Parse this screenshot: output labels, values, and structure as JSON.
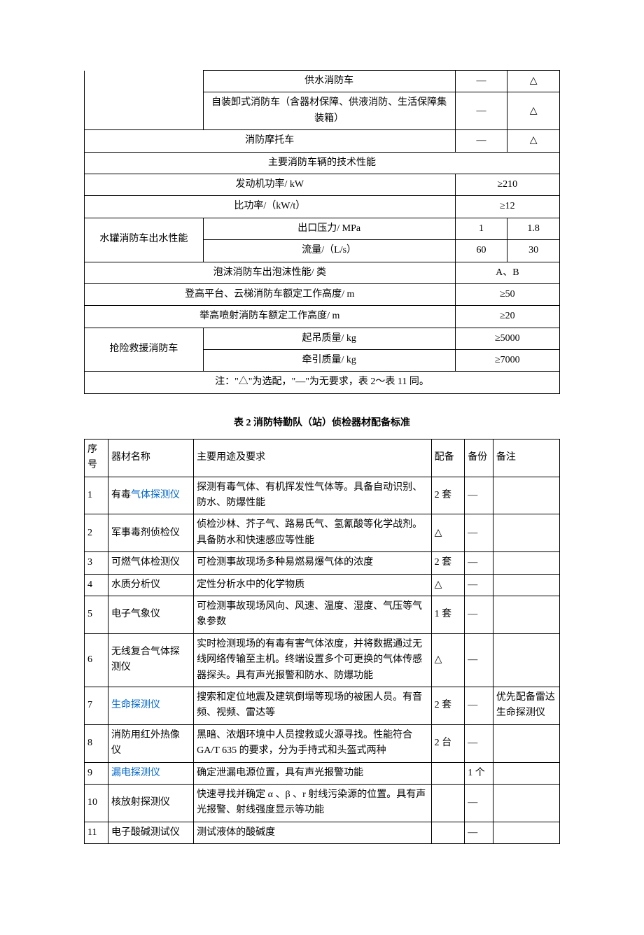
{
  "table1": {
    "r1": {
      "c2": "供水消防车",
      "c3": "—",
      "c4": "△"
    },
    "r2": {
      "c2": "自装卸式消防车（含器材保障、供液消防、生活保障集装箱）",
      "c3": "—",
      "c4": "△"
    },
    "r3": {
      "c1": "消防摩托车",
      "c3": "—",
      "c4": "△"
    },
    "r4": {
      "c1": "主要消防车辆的技术性能"
    },
    "r5": {
      "c1": "发动机功率/ kW",
      "c3": "≥210"
    },
    "r6": {
      "c1": "比功率/（kW/t）",
      "c3": "≥12"
    },
    "r7": {
      "c1": "水罐消防车出水性能",
      "c2": "出口压力/ MPa",
      "c3": "1",
      "c4": "1.8"
    },
    "r8": {
      "c2": "流量/（L/s）",
      "c3": "60",
      "c4": "30"
    },
    "r9": {
      "c1": "泡沫消防车出泡沫性能/ 类",
      "c3": "A、B"
    },
    "r10": {
      "c1": "登高平台、云梯消防车额定工作高度/ m",
      "c3": "≥50"
    },
    "r11": {
      "c1": "举高喷射消防车额定工作高度/ m",
      "c3": "≥20"
    },
    "r12": {
      "c1": "抢险救援消防车",
      "c2": "起吊质量/ kg",
      "c3": "≥5000"
    },
    "r13": {
      "c2": "牵引质量/ kg",
      "c3": "≥7000"
    },
    "note": "注：\"△\"为选配，\"—\"为无要求，表 2～表 11 同。"
  },
  "table2_caption": "表 2 消防特勤队（站）侦检器材配备标准",
  "table2": {
    "header": {
      "c1": "序号",
      "c2": "器材名称",
      "c3": "主要用途及要求",
      "c4": "配备",
      "c5": "备份",
      "c6": "备注"
    },
    "rows": [
      {
        "n": "1",
        "name_pre": "有毒",
        "name_link": "气体探测仪",
        "desc": "探测有毒气体、有机挥发性气体等。具备自动识别、防水、防爆性能",
        "qty": "2 套",
        "bak": "—",
        "note": ""
      },
      {
        "n": "2",
        "name": "军事毒剂侦检仪",
        "desc": "侦检沙林、芥子气、路易氏气、氢氰酸等化学战剂。具备防水和快速感应等性能",
        "qty": "△",
        "bak": "—",
        "note": ""
      },
      {
        "n": "3",
        "name": "可燃气体检测仪",
        "desc": "可检测事故现场多种易燃易爆气体的浓度",
        "qty": "2 套",
        "bak": "—",
        "note": ""
      },
      {
        "n": "4",
        "name": "水质分析仪",
        "desc": "定性分析水中的化学物质",
        "qty": "△",
        "bak": "—",
        "note": ""
      },
      {
        "n": "5",
        "name": "电子气象仪",
        "desc": "可检测事故现场风向、风速、温度、湿度、气压等气象参数",
        "qty": "1 套",
        "bak": "—",
        "note": ""
      },
      {
        "n": "6",
        "name": "无线复合气体探测仪",
        "desc": "实时检测现场的有毒有害气体浓度，并将数据通过无线网络传输至主机。终端设置多个可更换的气体传感器探头。具有声光报警和防水、防爆功能",
        "qty": "△",
        "bak": "—",
        "note": ""
      },
      {
        "n": "7",
        "name_link": "生命探测仪",
        "desc": "搜索和定位地震及建筑倒塌等现场的被困人员。有音频、视频、雷达等",
        "qty": "2 套",
        "bak": "—",
        "note": "优先配备雷达\n生命探测仪"
      },
      {
        "n": "8",
        "name": "消防用红外热像仪",
        "desc": "黑暗、浓烟环境中人员搜救或火源寻找。性能符合GA/T 635 的要求，分为手持式和头盔式两种",
        "qty": "2 台",
        "bak": "—",
        "note": ""
      },
      {
        "n": "9",
        "name_link": "漏电探测仪",
        "desc": "确定泄漏电源位置，具有声光报警功能",
        "qty": "",
        "bak": "1 个",
        "note": ""
      },
      {
        "n": "10",
        "name": "核放射探测仪",
        "desc": "快速寻找并确定 α 、β 、r 射线污染源的位置。具有声光报警、射线强度显示等功能",
        "qty": "",
        "bak": "—",
        "note": ""
      },
      {
        "n": "11",
        "name": "电子酸碱测试仪",
        "desc": "测试液体的酸碱度",
        "qty": "",
        "bak": "—",
        "note": ""
      }
    ]
  }
}
